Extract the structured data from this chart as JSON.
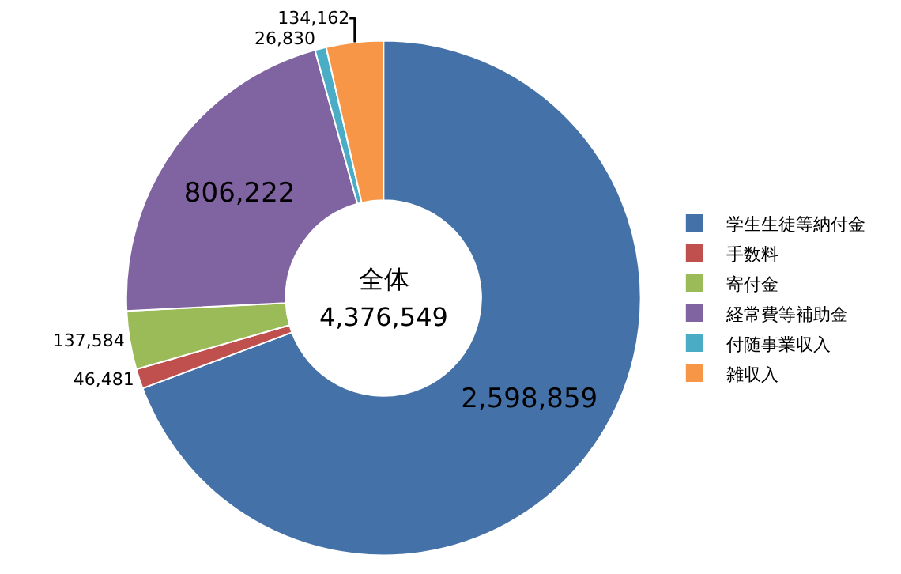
{
  "chart_data": {
    "type": "donut",
    "categories": [
      "学生生徒等納付金",
      "手数料",
      "寄付金",
      "経常費等補助金",
      "付随事業収入",
      "雑収入"
    ],
    "values": [
      2598859,
      46481,
      137584,
      806222,
      26830,
      134162
    ],
    "colors": [
      "#4472a8",
      "#c0504d",
      "#9bbb59",
      "#8064a2",
      "#4bacc6",
      "#f79646"
    ],
    "value_labels": [
      "2,598,859",
      "46,481",
      "137,584",
      "806,222",
      "26,830",
      "134,162"
    ],
    "annotations": [
      "全体",
      "4,376,549"
    ],
    "legend": "right"
  }
}
